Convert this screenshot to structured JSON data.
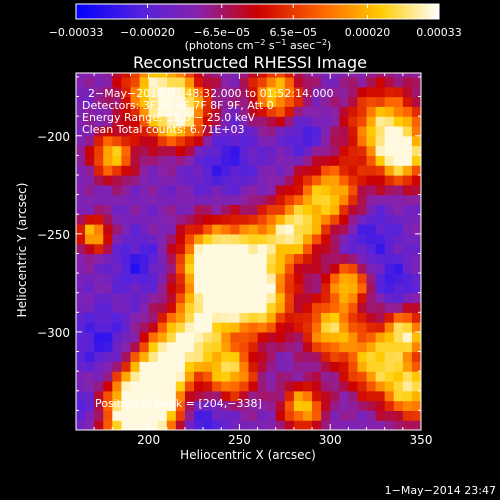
{
  "chart_data": {
    "type": "heatmap",
    "title": "Reconstructed RHESSI Image",
    "xlabel": "Heliocentric X (arcsec)",
    "ylabel": "Heliocentric Y (arcsec)",
    "xlim": [
      160,
      350
    ],
    "ylim": [
      -350,
      -168
    ],
    "xticks": [
      200,
      250,
      300,
      350
    ],
    "yticks": [
      -200,
      -250,
      -300
    ],
    "xtick_labels": [
      "200",
      "250",
      "300",
      "350"
    ],
    "ytick_labels": [
      "−200",
      "−250",
      "−300"
    ],
    "colorbar": {
      "range": [
        -0.00033,
        0.00033
      ],
      "tick_values": [
        -0.00033,
        -0.0002,
        -6.5e-05,
        6.5e-05,
        0.0002,
        0.00033
      ],
      "tick_labels": [
        "−0.00033",
        "−0.00020",
        "−6.5e−05",
        "6.5e−05",
        "0.00020",
        "0.00033"
      ],
      "unit_main": "(photons cm",
      "unit_exp1": "−2",
      "unit_mid": " s",
      "unit_exp2": "−1",
      "unit_tail": " asec",
      "unit_exp3": "−2",
      "unit_close": ")"
    },
    "info_lines": [
      "2−May−2014 01:48:32.000 to 01:52:14.000",
      "Detectors: 3F 5F 6F 7F 8F 9F, Att 0",
      "Energy Range: 12.0 − 25.0 keV",
      "Clean    Total counts: 6.71E+03"
    ],
    "peak_label": "Position of peak = [204,−338]",
    "peak": [
      204,
      -338
    ],
    "colors": {
      "cmap": [
        "#0000ff",
        "#6633cc",
        "#8822aa",
        "#cc0000",
        "#ff7700",
        "#ffcc00",
        "#ffffff"
      ]
    }
  },
  "footer": {
    "timestamp": "1−May−2014 23:47"
  }
}
